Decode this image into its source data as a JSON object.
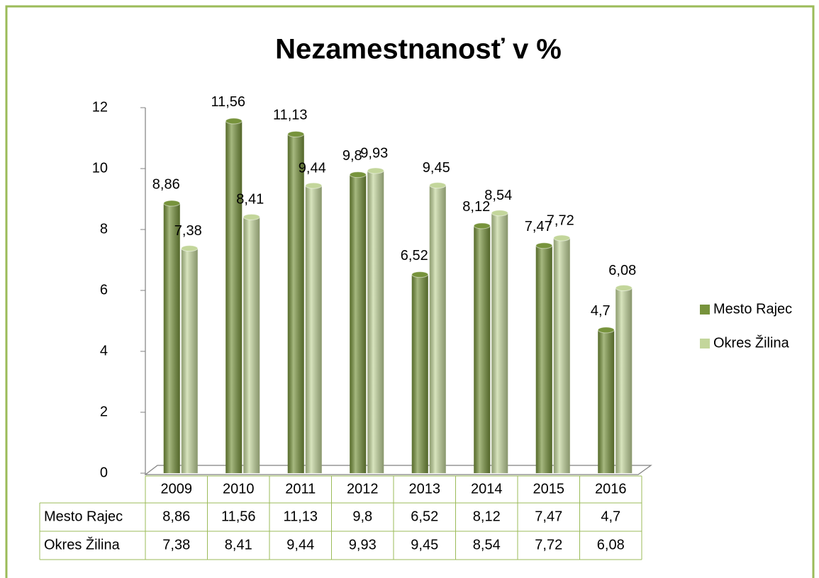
{
  "chart_data": {
    "type": "bar",
    "title": "Nezamestnanosť v %",
    "categories": [
      "2009",
      "2010",
      "2011",
      "2012",
      "2013",
      "2014",
      "2015",
      "2016"
    ],
    "series": [
      {
        "name": "Mesto Rajec",
        "color": "#77933c",
        "values": [
          8.86,
          11.56,
          11.13,
          9.8,
          6.52,
          8.12,
          7.47,
          4.7
        ],
        "value_labels": [
          "8,86",
          "11,56",
          "11,13",
          "9,8",
          "6,52",
          "8,12",
          "7,47",
          "4,7"
        ]
      },
      {
        "name": "Okres Žilina",
        "color": "#c3d69b",
        "values": [
          7.38,
          8.41,
          9.44,
          9.93,
          9.45,
          8.54,
          7.72,
          6.08
        ],
        "value_labels": [
          "7,38",
          "8,41",
          "9,44",
          "9,93",
          "9,45",
          "8,54",
          "7,72",
          "6,08"
        ]
      }
    ],
    "ylim": [
      0,
      12
    ],
    "yticks": [
      0,
      2,
      4,
      6,
      8,
      10,
      12
    ],
    "legend": "right",
    "data_table": true
  }
}
